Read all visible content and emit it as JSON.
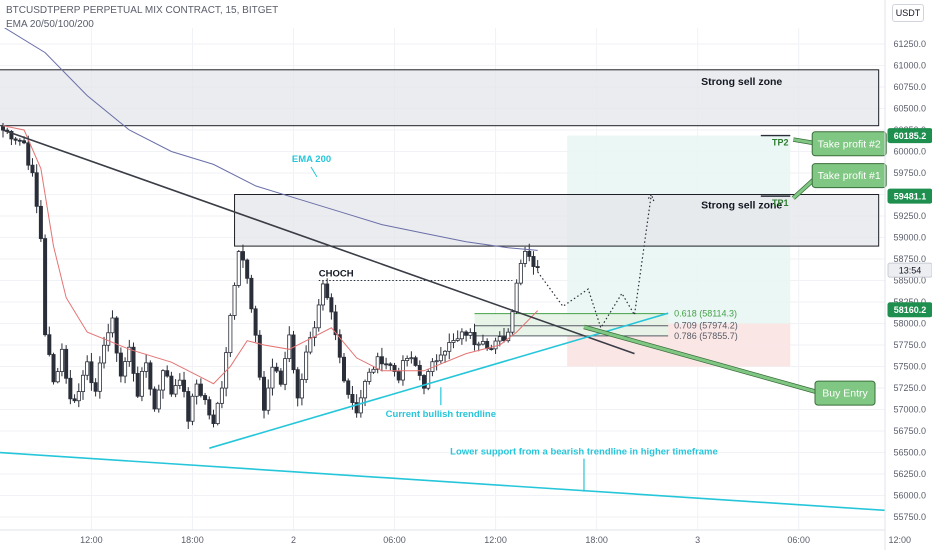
{
  "header": {
    "title": "BTCUSDTPERP PERPETUAL MIX CONTRACT, 15, BITGET",
    "indicator": "EMA 20/50/100/200",
    "currency": "USDT"
  },
  "colors": {
    "up": "#ffffff",
    "down": "#2a2e39",
    "zone_fill": "#e4e5ea",
    "trend_cyan": "#26c6da",
    "ema20": "#e57373",
    "ema200": "#6a6fa8",
    "green_box": "#81c784",
    "green_text": "#2e7d32",
    "price_tag_green": "#1e8f4e"
  },
  "chart_data": {
    "type": "candlestick",
    "y_axis": {
      "min": 55750,
      "max": 61500,
      "side": "right",
      "ticks": [
        61250,
        61000,
        60750,
        60500,
        60250,
        60000,
        59750,
        59500,
        59250,
        59000,
        58750,
        58500,
        58250,
        58000,
        57750,
        57500,
        57250,
        57000,
        56750,
        56500,
        56250,
        56000,
        55750
      ],
      "tick_labels": [
        "61250.0",
        "61000.0",
        "60750.0",
        "60500.0",
        "60250.0",
        "60000.0",
        "59750.0",
        "59500.0",
        "59250.0",
        "59000.0",
        "58750.0",
        "58500.0",
        "58250.0",
        "58000.0",
        "57750.0",
        "57500.0",
        "57250.0",
        "57000.0",
        "56750.0",
        "56500.0",
        "56250.0",
        "56000.0",
        "55750.0"
      ]
    },
    "x_axis": {
      "bars_total": 210,
      "tick_labels": [
        {
          "label": "12:00",
          "bar": 21
        },
        {
          "label": "18:00",
          "bar": 45
        },
        {
          "label": "2",
          "bar": 69
        },
        {
          "label": "06:00",
          "bar": 93
        },
        {
          "label": "12:00",
          "bar": 117
        },
        {
          "label": "18:00",
          "bar": 141
        },
        {
          "label": "3",
          "bar": 165
        },
        {
          "label": "06:00",
          "bar": 189
        },
        {
          "label": "12:00",
          "bar": 213
        }
      ]
    },
    "anchors": [
      [
        0,
        60250
      ],
      [
        2,
        60200
      ],
      [
        5,
        60100
      ],
      [
        7,
        59700
      ],
      [
        9,
        59000
      ],
      [
        10,
        57900
      ],
      [
        12,
        57300
      ],
      [
        14,
        57700
      ],
      [
        16,
        57100
      ],
      [
        18,
        57200
      ],
      [
        20,
        57600
      ],
      [
        22,
        57150
      ],
      [
        24,
        57800
      ],
      [
        26,
        58000
      ],
      [
        28,
        57400
      ],
      [
        30,
        57700
      ],
      [
        32,
        57200
      ],
      [
        34,
        57550
      ],
      [
        36,
        57000
      ],
      [
        38,
        57500
      ],
      [
        40,
        57200
      ],
      [
        42,
        57400
      ],
      [
        44,
        56900
      ],
      [
        46,
        57300
      ],
      [
        48,
        57100
      ],
      [
        50,
        56800
      ],
      [
        52,
        57300
      ],
      [
        54,
        58100
      ],
      [
        56,
        58900
      ],
      [
        57,
        58750
      ],
      [
        58,
        58500
      ],
      [
        60,
        57800
      ],
      [
        62,
        57000
      ],
      [
        64,
        57500
      ],
      [
        66,
        57300
      ],
      [
        68,
        57900
      ],
      [
        70,
        57100
      ],
      [
        72,
        57700
      ],
      [
        74,
        57900
      ],
      [
        76,
        58400
      ],
      [
        78,
        58100
      ],
      [
        80,
        57600
      ],
      [
        82,
        57200
      ],
      [
        84,
        57000
      ],
      [
        86,
        57300
      ],
      [
        88,
        57500
      ],
      [
        90,
        57600
      ],
      [
        92,
        57500
      ],
      [
        94,
        57400
      ],
      [
        96,
        57600
      ],
      [
        98,
        57500
      ],
      [
        100,
        57300
      ],
      [
        102,
        57500
      ],
      [
        104,
        57700
      ],
      [
        106,
        57750
      ],
      [
        108,
        57800
      ],
      [
        110,
        57900
      ],
      [
        112,
        57800
      ],
      [
        114,
        57850
      ],
      [
        116,
        57700
      ],
      [
        118,
        57800
      ],
      [
        120,
        57900
      ],
      [
        121,
        58200
      ],
      [
        122,
        58500
      ],
      [
        124,
        58900
      ],
      [
        125,
        58800
      ],
      [
        126,
        58700
      ],
      [
        127,
        58650
      ]
    ],
    "ema200": [
      [
        0,
        61450
      ],
      [
        10,
        61150
      ],
      [
        20,
        60650
      ],
      [
        30,
        60250
      ],
      [
        40,
        60000
      ],
      [
        50,
        59850
      ],
      [
        60,
        59600
      ],
      [
        70,
        59450
      ],
      [
        80,
        59300
      ],
      [
        90,
        59150
      ],
      [
        100,
        59050
      ],
      [
        110,
        58950
      ],
      [
        120,
        58880
      ],
      [
        127,
        58850
      ]
    ],
    "ema20": [
      [
        0,
        60300
      ],
      [
        5,
        60250
      ],
      [
        9,
        59800
      ],
      [
        12,
        58900
      ],
      [
        15,
        58300
      ],
      [
        20,
        57900
      ],
      [
        30,
        57700
      ],
      [
        40,
        57550
      ],
      [
        46,
        57400
      ],
      [
        50,
        57300
      ],
      [
        54,
        57500
      ],
      [
        58,
        57800
      ],
      [
        62,
        57750
      ],
      [
        68,
        57700
      ],
      [
        74,
        57850
      ],
      [
        78,
        57950
      ],
      [
        84,
        57600
      ],
      [
        90,
        57450
      ],
      [
        100,
        57450
      ],
      [
        110,
        57650
      ],
      [
        118,
        57750
      ],
      [
        122,
        57900
      ],
      [
        127,
        58150
      ]
    ],
    "zones": [
      {
        "label": "Strong sell zone",
        "y_top": 60950,
        "y_bottom": 60300,
        "x_from": -1,
        "x_to": 208
      },
      {
        "label": "Strong sell zone",
        "y_top": 59500,
        "y_bottom": 58900,
        "x_from": 55,
        "x_to": 208
      }
    ],
    "position": {
      "x_from": 134,
      "x_to": 187,
      "target": 60185.2,
      "entry": 58000,
      "stop": 57500
    },
    "fib_levels": [
      {
        "label": "0.618 (58114.3)",
        "value": 58114.3,
        "x_from": 112,
        "x_to": 158,
        "color": "#43a047"
      },
      {
        "label": "0.709 (57974.2)",
        "value": 57974.2,
        "x_from": 112,
        "x_to": 158,
        "color": "#555b66"
      },
      {
        "label": "0.786 (57855.7)",
        "value": 57855.7,
        "x_from": 112,
        "x_to": 158,
        "color": "#555b66"
      }
    ],
    "take_profits": [
      {
        "label": "TP2",
        "value": 60185.2,
        "x_from": 180,
        "x_to": 187
      },
      {
        "label": "TP1",
        "value": 59481.1,
        "x_from": 180,
        "x_to": 187
      }
    ],
    "bearish_trendline": {
      "from": [
        0,
        60250
      ],
      "to": [
        150,
        57650
      ]
    },
    "bullish_trendline": {
      "from": [
        49,
        56550
      ],
      "to": [
        158,
        58120
      ]
    },
    "lower_support": {
      "from": [
        -1,
        56500
      ],
      "to": [
        218,
        55800
      ]
    },
    "choch": {
      "label": "CHOCH",
      "value": 58500,
      "x_from": 75,
      "x_to": 121
    },
    "projection": [
      [
        127,
        58600
      ],
      [
        133,
        58200
      ],
      [
        139,
        58400
      ],
      [
        142,
        57950
      ],
      [
        147,
        58350
      ],
      [
        150,
        58100
      ],
      [
        154,
        59500
      ]
    ],
    "annotations": [
      {
        "label": "EMA 200",
        "x": 71,
        "y": 59880
      },
      {
        "label": "Current bullish trendline",
        "x": 104,
        "y": 57050
      },
      {
        "label": "Lower support from a bearish trendline in higher timeframe",
        "x": 138,
        "y": 56510
      },
      {
        "label": "Take profit #2",
        "x": 201,
        "y": 60090
      },
      {
        "label": "Take profit #1",
        "x": 201,
        "y": 59720
      },
      {
        "label": "Buy Entry",
        "x": 200,
        "y": 57190
      }
    ],
    "price_tags": [
      {
        "value": "60185.2",
        "price": 60185.2,
        "style": "green"
      },
      {
        "value": "59481.1",
        "price": 59481.1,
        "style": "green"
      },
      {
        "value": "13:54",
        "price": 58620,
        "style": "grey"
      },
      {
        "value": "58160.2",
        "price": 58160.2,
        "style": "green"
      }
    ]
  }
}
